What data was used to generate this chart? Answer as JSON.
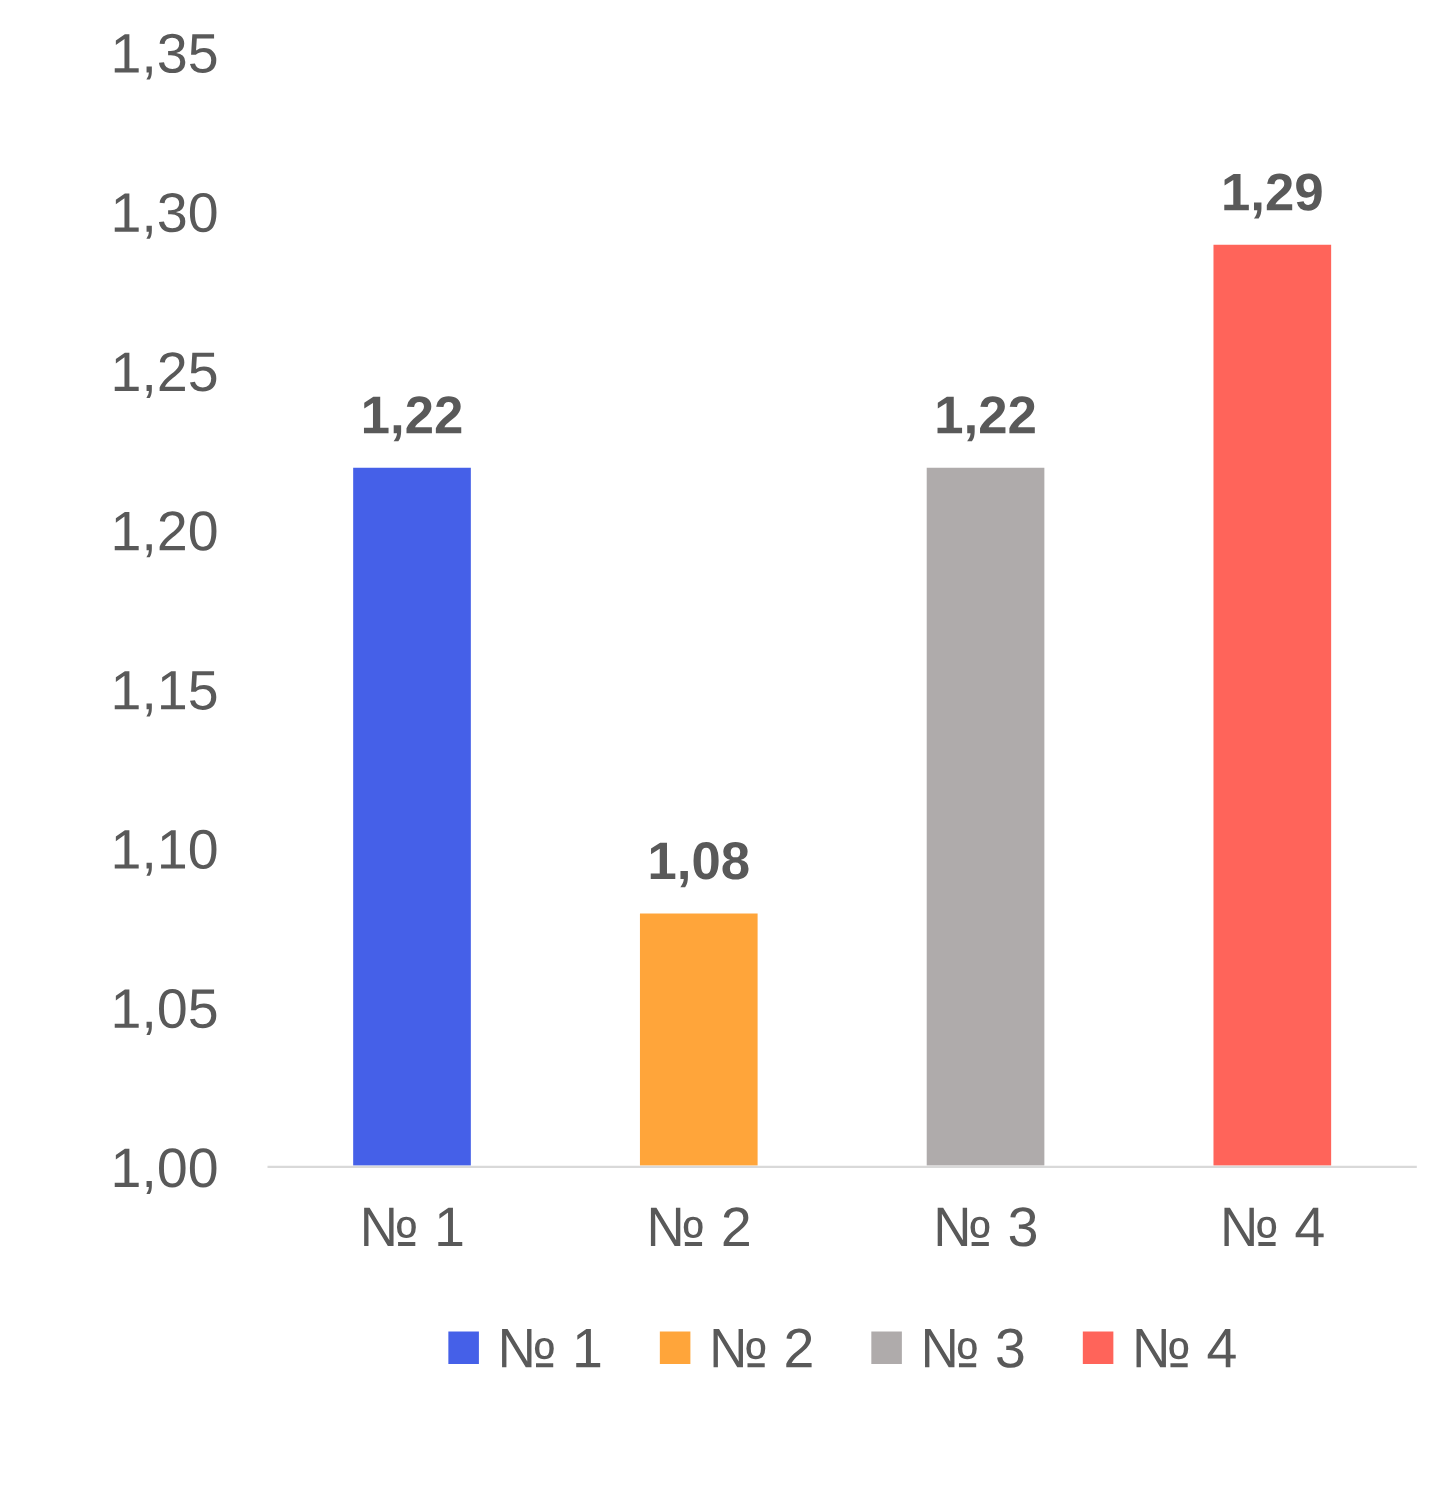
{
  "chart_data": {
    "type": "bar",
    "categories": [
      "№ 1",
      "№ 2",
      "№ 3",
      "№ 4"
    ],
    "series": [
      {
        "name": "№ 1",
        "color": "#4560e8",
        "values": [
          1.22,
          null,
          null,
          null
        ],
        "value_labels": [
          "1,22",
          null,
          null,
          null
        ]
      },
      {
        "name": "№ 2",
        "color": "#ffa53a",
        "values": [
          null,
          1.08,
          null,
          null
        ],
        "value_labels": [
          null,
          "1,08",
          null,
          null
        ]
      },
      {
        "name": "№ 3",
        "color": "#afabab",
        "values": [
          null,
          null,
          1.22,
          null
        ],
        "value_labels": [
          null,
          null,
          "1,22",
          null
        ]
      },
      {
        "name": "№ 4",
        "color": "#ff645a",
        "values": [
          null,
          null,
          null,
          1.29
        ],
        "value_labels": [
          null,
          null,
          null,
          "1,29"
        ]
      }
    ],
    "ylim": [
      1.0,
      1.35
    ],
    "yticks": [
      {
        "value": 1.0,
        "label": "1,00"
      },
      {
        "value": 1.05,
        "label": "1,05"
      },
      {
        "value": 1.1,
        "label": "1,10"
      },
      {
        "value": 1.15,
        "label": "1,15"
      },
      {
        "value": 1.2,
        "label": "1,20"
      },
      {
        "value": 1.25,
        "label": "1,25"
      },
      {
        "value": 1.3,
        "label": "1,30"
      },
      {
        "value": 1.35,
        "label": "1,35"
      }
    ],
    "grid": false,
    "legend": "bottom"
  }
}
